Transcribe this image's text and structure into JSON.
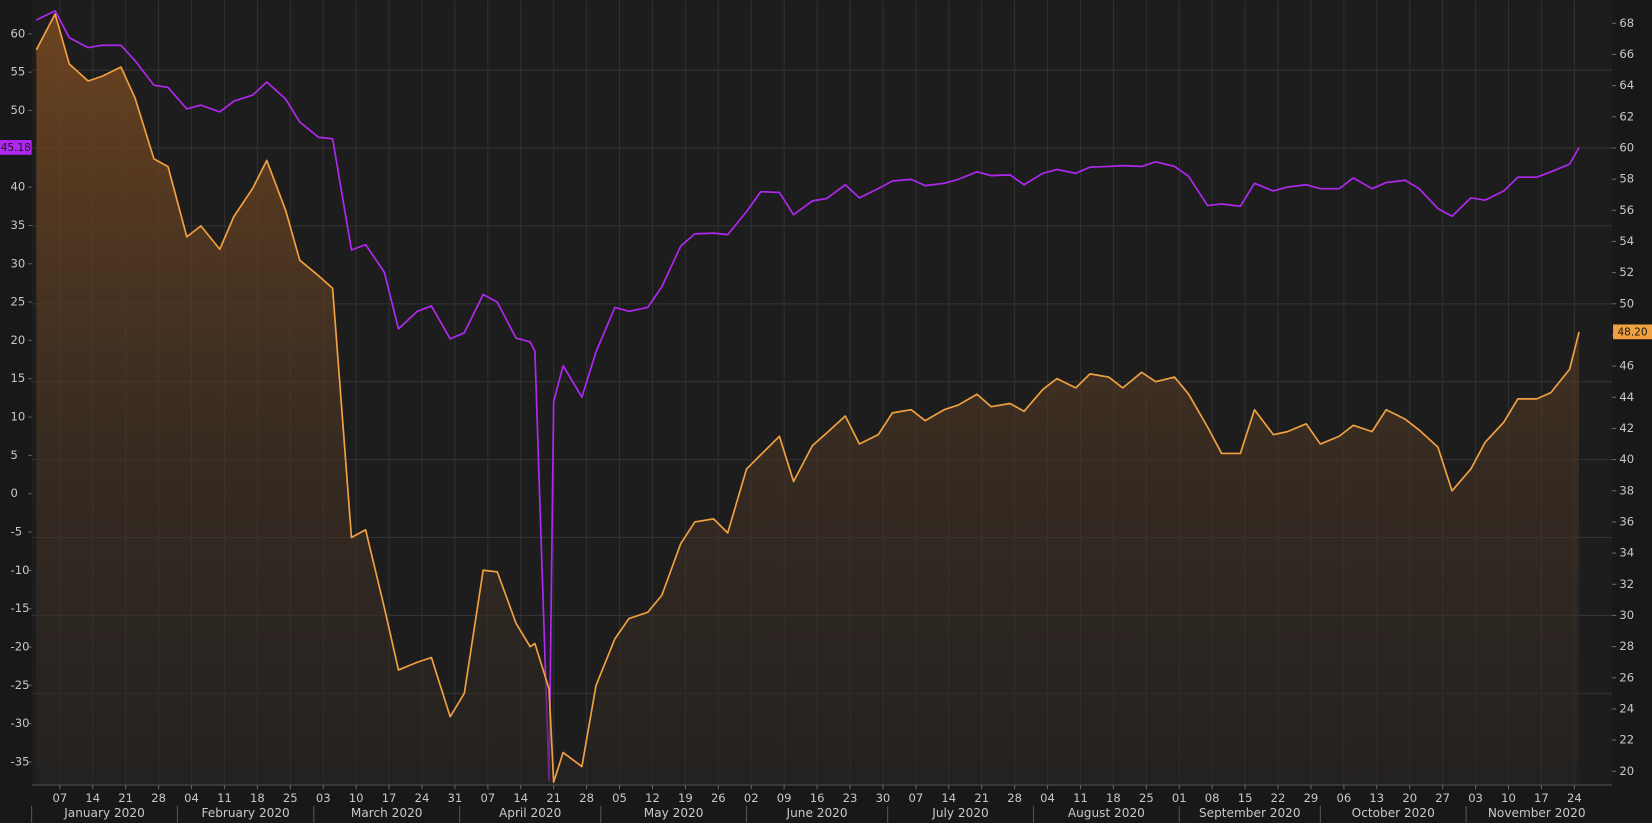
{
  "chart_data": {
    "type": "line",
    "x": [
      "2020-01-02",
      "2020-01-06",
      "2020-01-09",
      "2020-01-13",
      "2020-01-16",
      "2020-01-20",
      "2020-01-23",
      "2020-01-27",
      "2020-01-30",
      "2020-02-03",
      "2020-02-06",
      "2020-02-10",
      "2020-02-13",
      "2020-02-17",
      "2020-02-20",
      "2020-02-24",
      "2020-02-27",
      "2020-03-02",
      "2020-03-05",
      "2020-03-09",
      "2020-03-12",
      "2020-03-16",
      "2020-03-19",
      "2020-03-23",
      "2020-03-26",
      "2020-03-30",
      "2020-04-02",
      "2020-04-06",
      "2020-04-09",
      "2020-04-13",
      "2020-04-16",
      "2020-04-17",
      "2020-04-20",
      "2020-04-21",
      "2020-04-23",
      "2020-04-27",
      "2020-04-30",
      "2020-05-04",
      "2020-05-07",
      "2020-05-11",
      "2020-05-14",
      "2020-05-18",
      "2020-05-21",
      "2020-05-25",
      "2020-05-28",
      "2020-06-01",
      "2020-06-04",
      "2020-06-08",
      "2020-06-11",
      "2020-06-15",
      "2020-06-18",
      "2020-06-22",
      "2020-06-25",
      "2020-06-29",
      "2020-07-02",
      "2020-07-06",
      "2020-07-09",
      "2020-07-13",
      "2020-07-16",
      "2020-07-20",
      "2020-07-23",
      "2020-07-27",
      "2020-07-30",
      "2020-08-03",
      "2020-08-06",
      "2020-08-10",
      "2020-08-13",
      "2020-08-17",
      "2020-08-20",
      "2020-08-24",
      "2020-08-27",
      "2020-08-31",
      "2020-09-03",
      "2020-09-07",
      "2020-09-10",
      "2020-09-14",
      "2020-09-17",
      "2020-09-21",
      "2020-09-24",
      "2020-09-28",
      "2020-10-01",
      "2020-10-05",
      "2020-10-08",
      "2020-10-12",
      "2020-10-15",
      "2020-10-19",
      "2020-10-22",
      "2020-10-26",
      "2020-10-29",
      "2020-11-02",
      "2020-11-05",
      "2020-11-09",
      "2020-11-12",
      "2020-11-16",
      "2020-11-19",
      "2020-11-23",
      "2020-11-25"
    ],
    "series": [
      {
        "color": "#b028f0",
        "axis": "y",
        "end_label": "45.18",
        "values": [
          61.8,
          63.0,
          59.5,
          58.2,
          58.5,
          58.5,
          56.5,
          53.3,
          53.0,
          50.2,
          50.7,
          49.8,
          51.2,
          52.0,
          53.7,
          51.5,
          48.5,
          46.5,
          46.3,
          31.8,
          32.5,
          28.9,
          21.5,
          23.8,
          24.5,
          20.2,
          21.0,
          26.0,
          25.0,
          20.3,
          19.8,
          18.6,
          -37.4,
          12.0,
          16.7,
          12.6,
          18.5,
          24.3,
          23.8,
          24.3,
          27.0,
          32.3,
          33.9,
          34.0,
          33.8,
          36.8,
          39.4,
          39.3,
          36.4,
          38.2,
          38.5,
          40.3,
          38.6,
          39.8,
          40.8,
          41.0,
          40.2,
          40.5,
          41.0,
          42.0,
          41.5,
          41.6,
          40.3,
          41.8,
          42.3,
          41.8,
          42.6,
          42.7,
          42.8,
          42.7,
          43.3,
          42.7,
          41.4,
          37.6,
          37.8,
          37.5,
          40.5,
          39.5,
          40.0,
          40.3,
          39.8,
          39.8,
          41.2,
          39.8,
          40.6,
          40.9,
          39.8,
          37.2,
          36.2,
          38.6,
          38.3,
          39.5,
          41.3,
          41.3,
          42.0,
          43.0,
          45.18
        ]
      },
      {
        "color": "#f0a040",
        "axis": "y2",
        "area": true,
        "end_label": "48.20",
        "values": [
          66.3,
          68.6,
          65.4,
          64.3,
          64.6,
          65.2,
          63.2,
          59.3,
          58.8,
          54.3,
          55.0,
          53.5,
          55.6,
          57.4,
          59.2,
          56.0,
          52.8,
          51.8,
          51.0,
          35.0,
          35.5,
          30.5,
          26.5,
          27.0,
          27.3,
          23.5,
          25.0,
          32.9,
          32.8,
          29.5,
          28.0,
          28.2,
          25.3,
          19.3,
          21.2,
          20.3,
          25.5,
          28.5,
          29.8,
          30.2,
          31.3,
          34.6,
          36.0,
          36.2,
          35.3,
          39.4,
          40.3,
          41.5,
          38.6,
          40.9,
          41.7,
          42.8,
          41.0,
          41.6,
          43.0,
          43.2,
          42.5,
          43.2,
          43.5,
          44.2,
          43.4,
          43.6,
          43.1,
          44.5,
          45.2,
          44.6,
          45.5,
          45.3,
          44.6,
          45.6,
          45.0,
          45.3,
          44.2,
          42.1,
          40.4,
          40.4,
          43.2,
          41.6,
          41.8,
          42.3,
          41.0,
          41.5,
          42.2,
          41.8,
          43.2,
          42.6,
          41.9,
          40.8,
          38.0,
          39.4,
          41.1,
          42.4,
          43.9,
          43.9,
          44.3,
          45.8,
          48.2
        ]
      }
    ],
    "xlim": [
      "2020-01-01",
      "2020-12-02"
    ],
    "xticks": [
      {
        "value": "2020-01-07",
        "label": "07"
      },
      {
        "value": "2020-01-14",
        "label": "14"
      },
      {
        "value": "2020-01-21",
        "label": "21"
      },
      {
        "value": "2020-01-28",
        "label": "28"
      },
      {
        "value": "2020-02-04",
        "label": "04"
      },
      {
        "value": "2020-02-11",
        "label": "11"
      },
      {
        "value": "2020-02-18",
        "label": "18"
      },
      {
        "value": "2020-02-25",
        "label": "25"
      },
      {
        "value": "2020-03-03",
        "label": "03"
      },
      {
        "value": "2020-03-10",
        "label": "10"
      },
      {
        "value": "2020-03-17",
        "label": "17"
      },
      {
        "value": "2020-03-24",
        "label": "24"
      },
      {
        "value": "2020-03-31",
        "label": "31"
      },
      {
        "value": "2020-04-07",
        "label": "07"
      },
      {
        "value": "2020-04-14",
        "label": "14"
      },
      {
        "value": "2020-04-21",
        "label": "21"
      },
      {
        "value": "2020-04-28",
        "label": "28"
      },
      {
        "value": "2020-05-05",
        "label": "05"
      },
      {
        "value": "2020-05-12",
        "label": "12"
      },
      {
        "value": "2020-05-19",
        "label": "19"
      },
      {
        "value": "2020-05-26",
        "label": "26"
      },
      {
        "value": "2020-06-02",
        "label": "02"
      },
      {
        "value": "2020-06-09",
        "label": "09"
      },
      {
        "value": "2020-06-16",
        "label": "16"
      },
      {
        "value": "2020-06-23",
        "label": "23"
      },
      {
        "value": "2020-06-30",
        "label": "30"
      },
      {
        "value": "2020-07-07",
        "label": "07"
      },
      {
        "value": "2020-07-14",
        "label": "14"
      },
      {
        "value": "2020-07-21",
        "label": "21"
      },
      {
        "value": "2020-07-28",
        "label": "28"
      },
      {
        "value": "2020-08-04",
        "label": "04"
      },
      {
        "value": "2020-08-11",
        "label": "11"
      },
      {
        "value": "2020-08-18",
        "label": "18"
      },
      {
        "value": "2020-08-25",
        "label": "25"
      },
      {
        "value": "2020-09-01",
        "label": "01"
      },
      {
        "value": "2020-09-08",
        "label": "08"
      },
      {
        "value": "2020-09-15",
        "label": "15"
      },
      {
        "value": "2020-09-22",
        "label": "22"
      },
      {
        "value": "2020-09-29",
        "label": "29"
      },
      {
        "value": "2020-10-06",
        "label": "06"
      },
      {
        "value": "2020-10-13",
        "label": "13"
      },
      {
        "value": "2020-10-20",
        "label": "20"
      },
      {
        "value": "2020-10-27",
        "label": "27"
      },
      {
        "value": "2020-11-03",
        "label": "03"
      },
      {
        "value": "2020-11-10",
        "label": "10"
      },
      {
        "value": "2020-11-17",
        "label": "17"
      },
      {
        "value": "2020-11-24",
        "label": "24"
      }
    ],
    "month_labels": [
      {
        "value": "2020-01",
        "label": "January 2020"
      },
      {
        "value": "2020-02",
        "label": "February 2020"
      },
      {
        "value": "2020-03",
        "label": "March 2020"
      },
      {
        "value": "2020-04",
        "label": "April 2020"
      },
      {
        "value": "2020-05",
        "label": "May 2020"
      },
      {
        "value": "2020-06",
        "label": "June 2020"
      },
      {
        "value": "2020-07",
        "label": "July 2020"
      },
      {
        "value": "2020-08",
        "label": "August 2020"
      },
      {
        "value": "2020-09",
        "label": "September 2020"
      },
      {
        "value": "2020-10",
        "label": "October 2020"
      },
      {
        "value": "2020-11",
        "label": "November 2020"
      }
    ],
    "ylim": [
      -38,
      64.4
    ],
    "yticks": [
      -35,
      -30,
      -25,
      -20,
      -15,
      -10,
      -5,
      0,
      5,
      10,
      15,
      20,
      25,
      30,
      35,
      40,
      45,
      50,
      55,
      60
    ],
    "y2lim": [
      19.12,
      69.49
    ],
    "y2ticks": [
      20,
      22,
      24,
      26,
      28,
      30,
      32,
      34,
      36,
      38,
      40,
      42,
      44,
      46,
      48,
      50,
      52,
      54,
      56,
      58,
      60,
      62,
      64,
      66,
      68
    ],
    "y2grid": [
      25,
      30,
      35,
      40,
      45,
      50,
      55,
      60,
      65
    ],
    "grid": true
  }
}
